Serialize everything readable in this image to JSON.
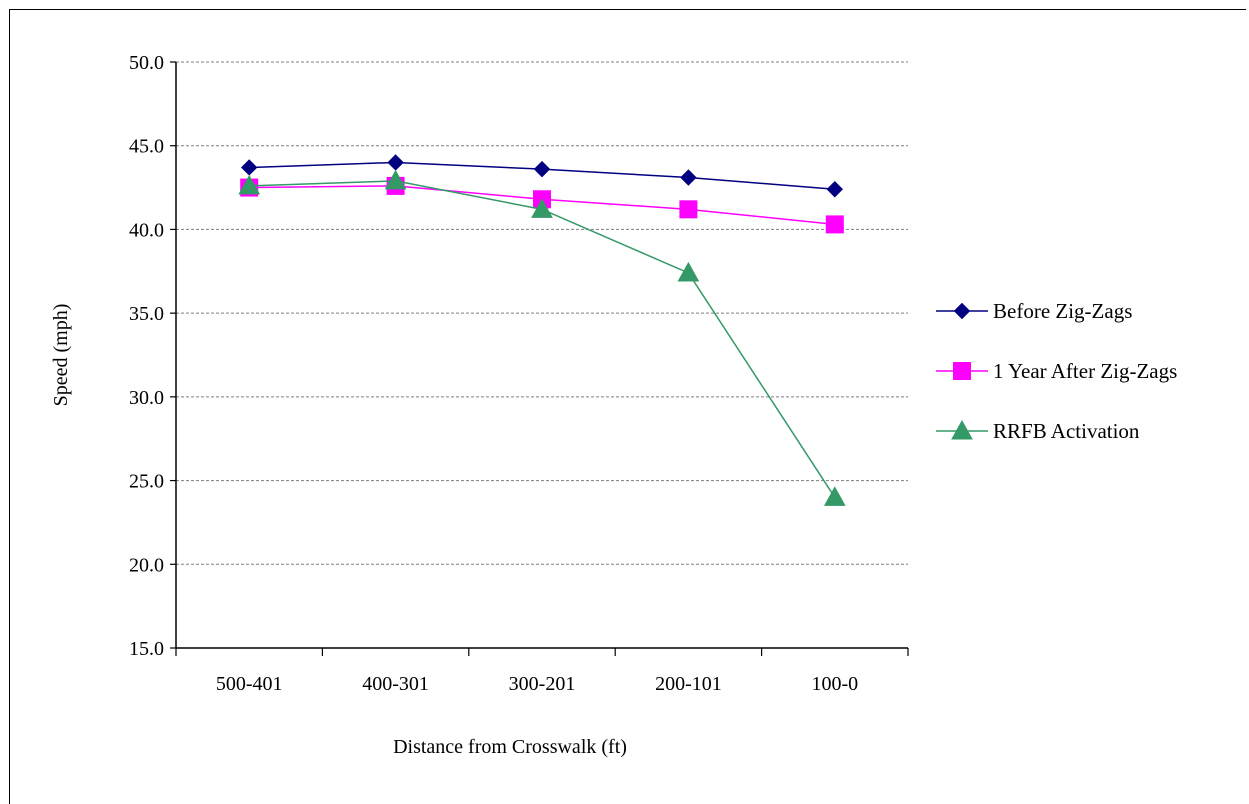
{
  "chart_data": {
    "type": "line",
    "title": "",
    "xlabel": "Distance from Crosswalk (ft)",
    "ylabel": "Speed (mph)",
    "categories": [
      "500-401",
      "400-301",
      "300-201",
      "200-101",
      "100-0"
    ],
    "ylim": [
      15,
      50
    ],
    "yticks": [
      "15.0",
      "20.0",
      "25.0",
      "30.0",
      "35.0",
      "40.0",
      "45.0",
      "50.0"
    ],
    "grid": true,
    "legend_position": "right",
    "series": [
      {
        "name": "Before Zig-Zags",
        "values": [
          43.7,
          44.0,
          43.6,
          43.1,
          42.4
        ],
        "color": "#000080",
        "marker": "diamond"
      },
      {
        "name": "1 Year After Zig-Zags",
        "values": [
          42.5,
          42.6,
          41.8,
          41.2,
          40.3
        ],
        "color": "#FF00FF",
        "marker": "square"
      },
      {
        "name": "RRFB Activation",
        "values": [
          42.6,
          42.9,
          41.2,
          37.4,
          24.0
        ],
        "color": "#339966",
        "marker": "triangle"
      }
    ]
  }
}
